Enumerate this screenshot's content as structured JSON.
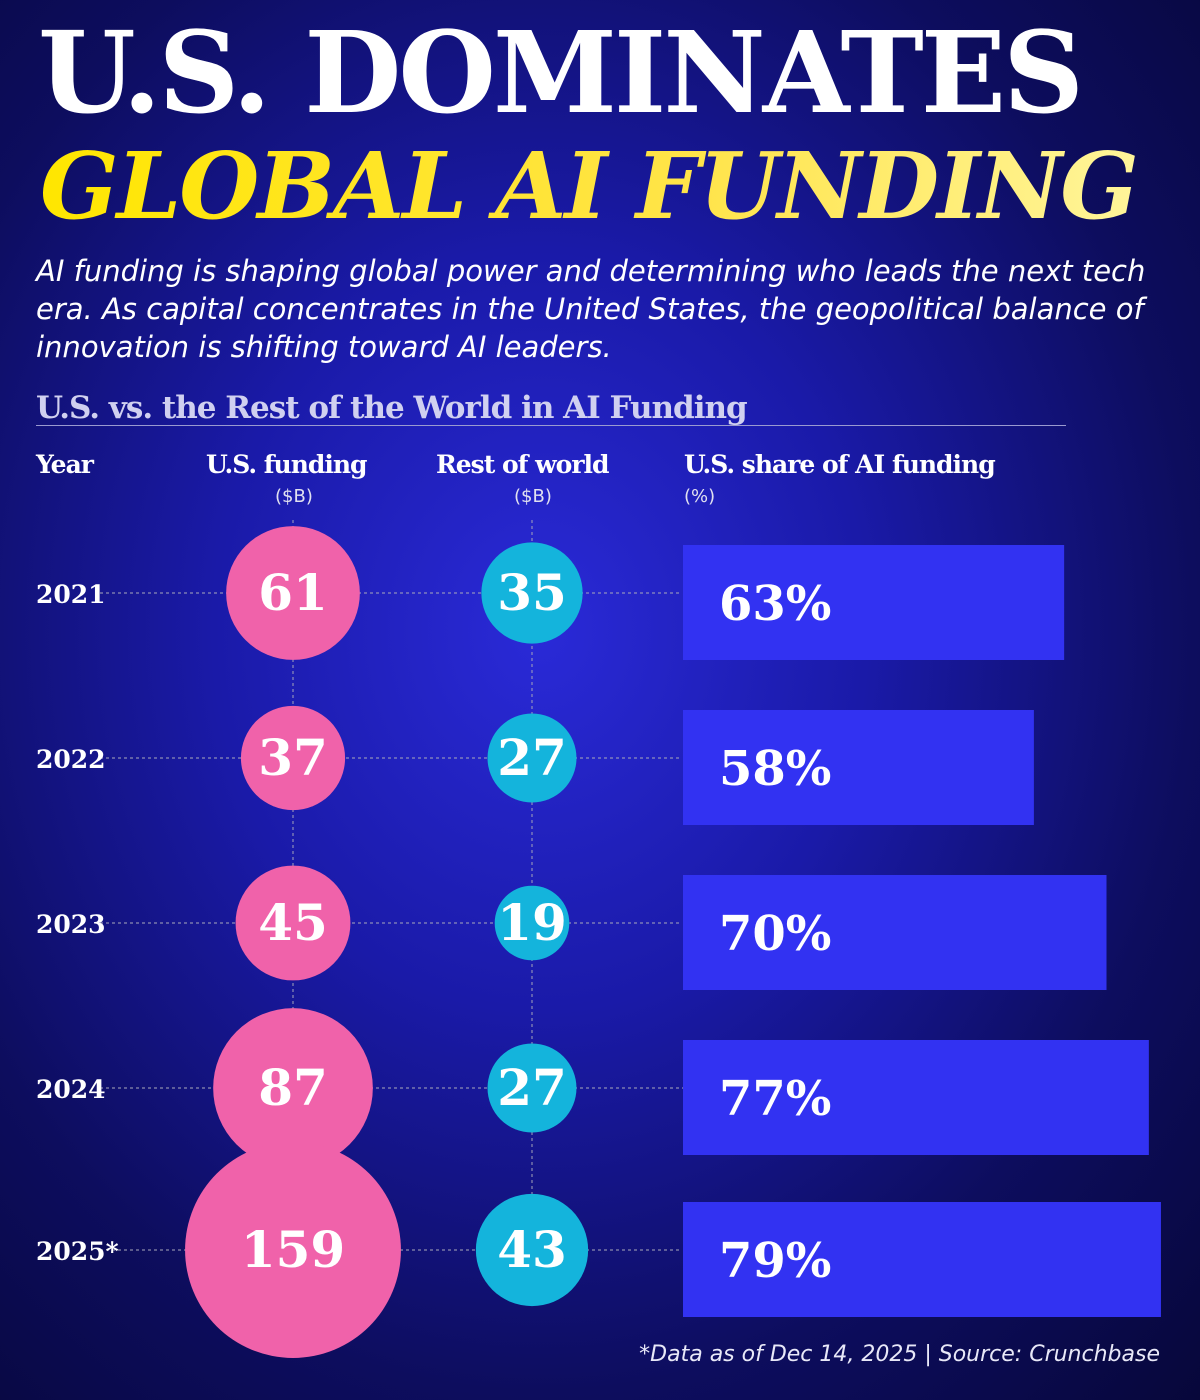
{
  "title_line1": "U.S. DOMINATES",
  "title_line2": "GLOBAL AI FUNDING",
  "subtitle": "AI funding is shaping global power and determining who leads the next tech era. As capital concentrates in the United States, the geopolitical balance of innovation is shifting toward AI leaders.",
  "section_title": "U.S. vs. the Rest of the World in AI Funding",
  "headers": {
    "year": "Year",
    "us": "U.S. funding",
    "us_unit": "($B)",
    "row": "Rest of world",
    "row_unit": "($B)",
    "share": "U.S. share of AI funding",
    "share_unit": "(%)"
  },
  "footnote": "*Data as of Dec 14, 2025 | Source: Crunchbase",
  "colors": {
    "us": "#f062aa",
    "rest_of_world": "#14b4dc",
    "share_bar": "#3232f2",
    "title_accent": "#ffe600"
  },
  "chart_data": {
    "type": "table",
    "categories": [
      "2021",
      "2022",
      "2023",
      "2024",
      "2025*"
    ],
    "series": [
      {
        "name": "U.S. funding ($B)",
        "values": [
          61,
          37,
          45,
          87,
          159
        ],
        "display": [
          "61",
          "37",
          "45",
          "87",
          "159"
        ]
      },
      {
        "name": "Rest of world ($B)",
        "values": [
          35,
          27,
          19,
          27,
          43
        ],
        "display": [
          "35",
          "27",
          "19",
          "27",
          "43"
        ]
      },
      {
        "name": "U.S. share of AI funding (%)",
        "values": [
          63,
          58,
          70,
          77,
          79
        ],
        "display": [
          "63%",
          "58%",
          "70%",
          "77%",
          "79%"
        ]
      }
    ]
  }
}
